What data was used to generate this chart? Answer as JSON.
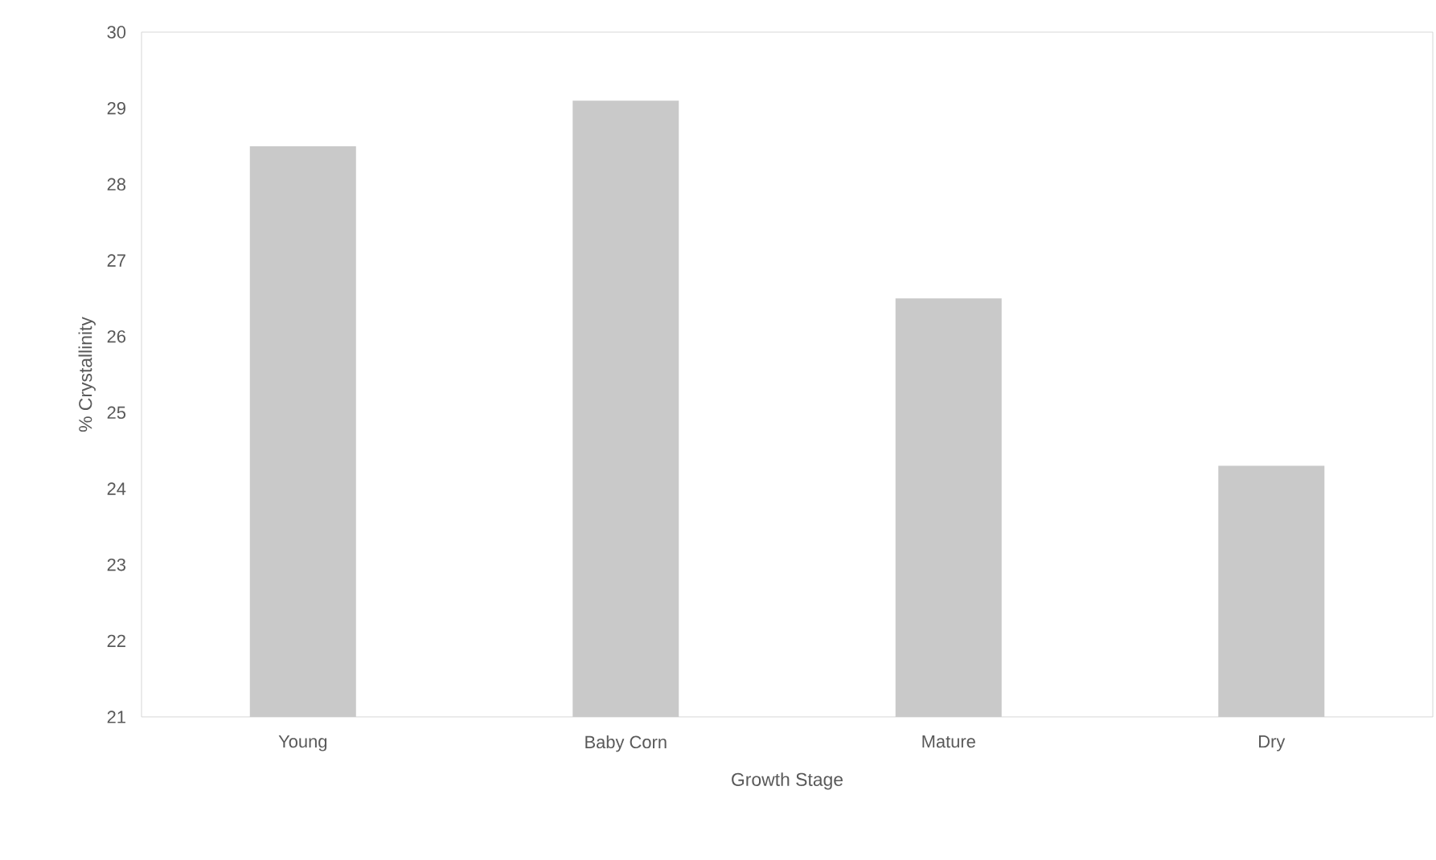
{
  "chart_data": {
    "type": "bar",
    "xlabel": "Growth Stage",
    "ylabel": "% Crystallinity",
    "categories": [
      "Young",
      "Baby Corn",
      "Mature",
      "Dry"
    ],
    "values": [
      28.5,
      29.1,
      26.5,
      24.3
    ],
    "color": "#c9c9c9",
    "ylim": [
      21,
      30
    ],
    "yticks": [
      21,
      22,
      23,
      24,
      25,
      26,
      27,
      28,
      29,
      30
    ],
    "grid": false
  }
}
